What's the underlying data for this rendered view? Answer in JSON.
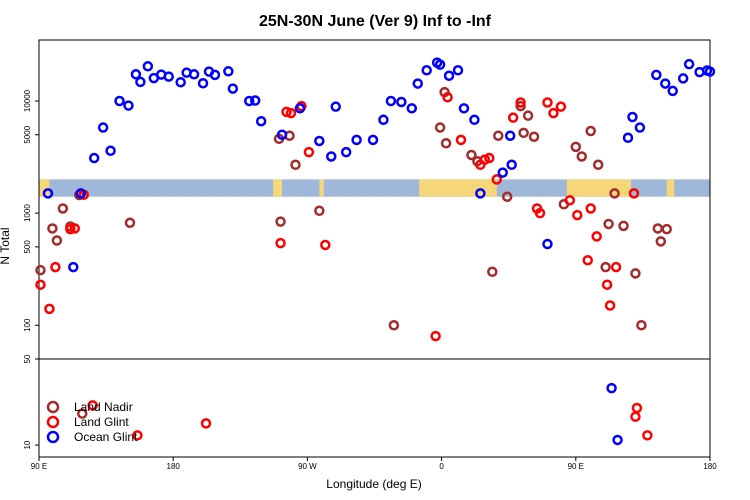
{
  "chart_data": {
    "type": "scatter",
    "title": "25N-30N June (Ver 9)   Inf to -Inf",
    "xlabel": "Longitude (deg E)",
    "ylabel": "N Total",
    "x_tick_labels": [
      "90 E",
      "180",
      "90 W",
      "0",
      "90 E",
      "180"
    ],
    "x_tick_values": [
      90,
      180,
      270,
      360,
      450,
      540
    ],
    "xlim": [
      90,
      540
    ],
    "y_scale": "log",
    "upper_ylim": [
      50,
      35000
    ],
    "upper_ticks": [
      {
        "value": 100,
        "label": "100"
      },
      {
        "value": 500,
        "label": "500"
      },
      {
        "value": 1000,
        "label": "1000"
      },
      {
        "value": 5000,
        "label": "5000"
      },
      {
        "value": 10000,
        "label": "10000"
      }
    ],
    "lower_ylim": [
      8,
      50
    ],
    "lower_ticks": [
      {
        "value": 10,
        "label": "10"
      },
      {
        "value": 50,
        "label": "50"
      }
    ],
    "legend_position": "bottom-left",
    "colors": {
      "land_nadir": "#a52a2a",
      "land_glint": "#ff0000",
      "ocean_glint": "#0000ff",
      "band_land": "#f5d77a",
      "band_ocean": "#9fb7d9"
    },
    "band": {
      "y_low": 1400,
      "y_high": 2000
    },
    "land_segments": [
      [
        90,
        97
      ],
      [
        247,
        253
      ],
      [
        278,
        281
      ],
      [
        345,
        397
      ],
      [
        444,
        487
      ],
      [
        511,
        516
      ]
    ],
    "series": [
      {
        "name": "Land Nadir",
        "color": "#a52a2a",
        "x": [
          91,
          99,
          102,
          106,
          111,
          117,
          119,
          151,
          251,
          252,
          258,
          262,
          278,
          328,
          359,
          362,
          363,
          380,
          384,
          394,
          398,
          404,
          413,
          415,
          418,
          422,
          442,
          450,
          454,
          460,
          465,
          470,
          472,
          476,
          482,
          490,
          494,
          505,
          507,
          511
        ],
        "y": [
          310,
          730,
          570,
          1100,
          760,
          1450,
          18,
          820,
          4600,
          840,
          4900,
          2700,
          1050,
          100,
          5800,
          12000,
          4200,
          3300,
          2900,
          300,
          4900,
          1400,
          9000,
          5200,
          7400,
          4800,
          1200,
          3900,
          3200,
          5400,
          2700,
          330,
          800,
          1500,
          770,
          290,
          100,
          730,
          560,
          720
        ]
      },
      {
        "name": "Land Glint",
        "color": "#ff0000",
        "x": [
          91,
          97,
          101,
          111,
          114,
          120,
          126,
          156,
          202,
          252,
          256,
          259,
          266,
          271,
          282,
          356,
          364,
          373,
          386,
          389,
          392,
          397,
          408,
          413,
          424,
          426,
          431,
          435,
          440,
          446,
          451,
          458,
          460,
          464,
          471,
          473,
          477,
          489,
          490,
          491,
          498
        ],
        "y": [
          230,
          140,
          330,
          720,
          730,
          1460,
          21,
          12,
          15,
          540,
          8000,
          7800,
          9000,
          3500,
          520,
          80,
          10800,
          4500,
          2700,
          3000,
          3100,
          2000,
          7100,
          9700,
          1100,
          1000,
          9700,
          7800,
          8900,
          1300,
          960,
          380,
          1100,
          620,
          230,
          150,
          330,
          1500,
          17,
          20,
          12
        ]
      },
      {
        "name": "Ocean Glint",
        "color": "#0000ff",
        "x": [
          96,
          113,
          118,
          127,
          133,
          138,
          144,
          150,
          155,
          158,
          163,
          167,
          172,
          177,
          185,
          189,
          194,
          200,
          204,
          208,
          217,
          220,
          231,
          235,
          239,
          253,
          265,
          278,
          286,
          289,
          296,
          303,
          314,
          321,
          326,
          333,
          340,
          344,
          350,
          357,
          359,
          365,
          371,
          375,
          382,
          386,
          401,
          406,
          407,
          431,
          474,
          478,
          485,
          488,
          493,
          504,
          510,
          515,
          522,
          526,
          533,
          538,
          540
        ],
        "y": [
          1500,
          330,
          1500,
          3100,
          5800,
          3600,
          10000,
          9100,
          17300,
          14800,
          20400,
          16000,
          17200,
          16500,
          14700,
          17900,
          17300,
          14400,
          18300,
          17100,
          18400,
          12900,
          10000,
          10100,
          6600,
          5000,
          8600,
          4400,
          3200,
          8900,
          3500,
          4500,
          4500,
          6800,
          10000,
          9800,
          8600,
          14300,
          18800,
          22000,
          21100,
          16800,
          18800,
          8600,
          6800,
          1500,
          2300,
          4900,
          2700,
          530,
          29,
          11,
          4700,
          7200,
          5800,
          17100,
          14300,
          12300,
          15900,
          21300,
          18100,
          18700,
          18300
        ]
      }
    ]
  }
}
